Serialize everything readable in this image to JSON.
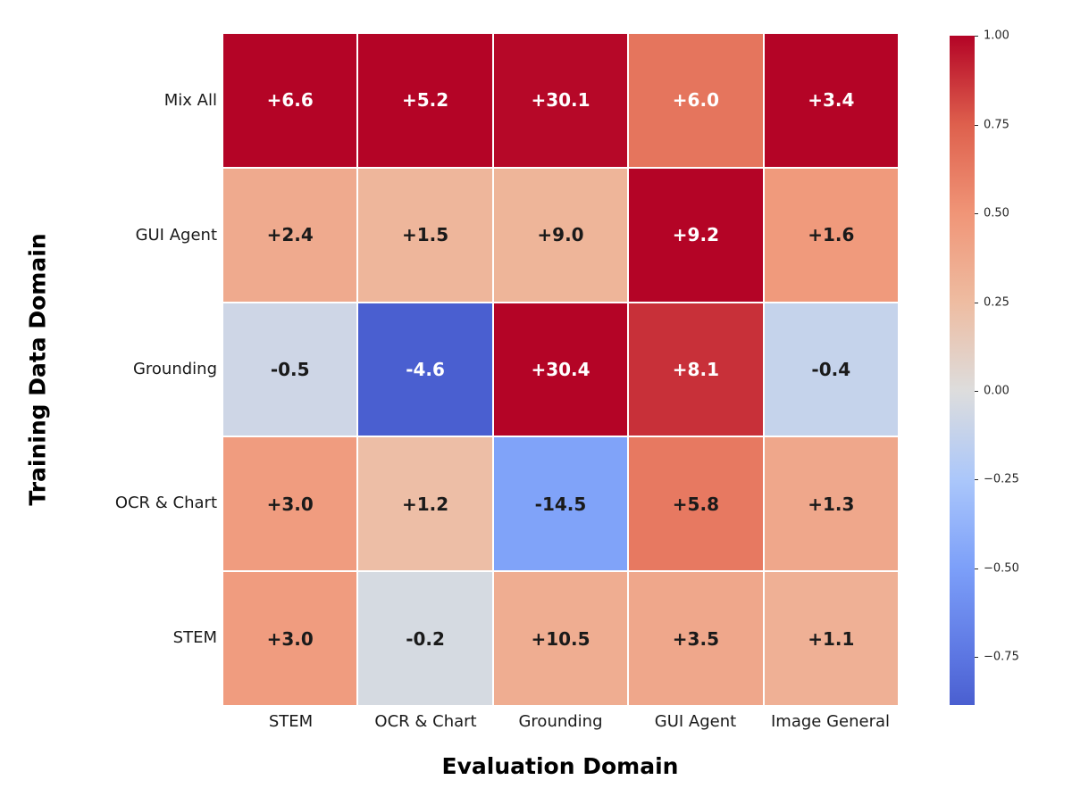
{
  "chart_data": {
    "type": "heatmap",
    "title": "",
    "xlabel": "Evaluation Domain",
    "ylabel": "Training Data Domain",
    "x_categories": [
      "STEM",
      "OCR & Chart",
      "Grounding",
      "GUI Agent",
      "Image General"
    ],
    "y_categories": [
      "Mix All",
      "GUI Agent",
      "Grounding",
      "OCR & Chart",
      "STEM"
    ],
    "values": [
      [
        6.6,
        5.2,
        30.1,
        6.0,
        3.4
      ],
      [
        2.4,
        1.5,
        9.0,
        9.2,
        1.6
      ],
      [
        -0.5,
        -4.6,
        30.4,
        8.1,
        -0.4
      ],
      [
        3.0,
        1.2,
        -14.5,
        5.8,
        1.3
      ],
      [
        3.0,
        -0.2,
        10.5,
        3.5,
        1.1
      ]
    ],
    "cell_labels": [
      [
        "+6.6",
        "+5.2",
        "+30.1",
        "+6.0",
        "+3.4"
      ],
      [
        "+2.4",
        "+1.5",
        "+9.0",
        "+9.2",
        "+1.6"
      ],
      [
        "-0.5",
        "-4.6",
        "+30.4",
        "+8.1",
        "-0.4"
      ],
      [
        "+3.0",
        "+1.2",
        "-14.5",
        "+5.8",
        "+1.3"
      ],
      [
        "+3.0",
        "-0.2",
        "+10.5",
        "+3.5",
        "+1.1"
      ]
    ],
    "cell_colors": [
      [
        "#B40426",
        "#B40426",
        "#B60828",
        "#E5755D",
        "#B40426"
      ],
      [
        "#EFAA8E",
        "#EEB69B",
        "#EEB599",
        "#B40426",
        "#F09A7C"
      ],
      [
        "#CED6E6",
        "#4A5FD0",
        "#B40426",
        "#C83039",
        "#C5D3EB"
      ],
      [
        "#F09C7F",
        "#EDBEA6",
        "#80A3F9",
        "#E77961",
        "#EFA78B"
      ],
      [
        "#F09C7F",
        "#D5DAE1",
        "#EFAD91",
        "#EFA78B",
        "#EFB095"
      ]
    ],
    "cell_text_colors": [
      [
        "#FFFFFF",
        "#FFFFFF",
        "#FFFFFF",
        "#FFFFFF",
        "#FFFFFF"
      ],
      [
        "#1A1A1A",
        "#1A1A1A",
        "#1A1A1A",
        "#FFFFFF",
        "#1A1A1A"
      ],
      [
        "#1A1A1A",
        "#FFFFFF",
        "#FFFFFF",
        "#FFFFFF",
        "#1A1A1A"
      ],
      [
        "#1A1A1A",
        "#1A1A1A",
        "#1A1A1A",
        "#1A1A1A",
        "#1A1A1A"
      ],
      [
        "#1A1A1A",
        "#1A1A1A",
        "#1A1A1A",
        "#1A1A1A",
        "#1A1A1A"
      ]
    ],
    "grid_line_color": "#FFFFFF",
    "legend_position": "right",
    "colorbar": {
      "ticks": [
        "1.00",
        "0.75",
        "0.50",
        "0.25",
        "0.00",
        "−0.25",
        "−0.50",
        "−0.75"
      ],
      "tick_positions_pct": [
        0,
        13.3,
        26.5,
        39.8,
        53.1,
        66.3,
        79.6,
        92.8
      ],
      "gradient": [
        {
          "pos": 0,
          "color": "#B40426"
        },
        {
          "pos": 13.3,
          "color": "#DE604D"
        },
        {
          "pos": 26.5,
          "color": "#F09577"
        },
        {
          "pos": 39.8,
          "color": "#EEBCA1"
        },
        {
          "pos": 53.1,
          "color": "#DDDDDD"
        },
        {
          "pos": 66.3,
          "color": "#ABC7FA"
        },
        {
          "pos": 79.6,
          "color": "#7C9FF9"
        },
        {
          "pos": 92.8,
          "color": "#5C76E2"
        },
        {
          "pos": 100,
          "color": "#4A5FD0"
        }
      ]
    }
  }
}
